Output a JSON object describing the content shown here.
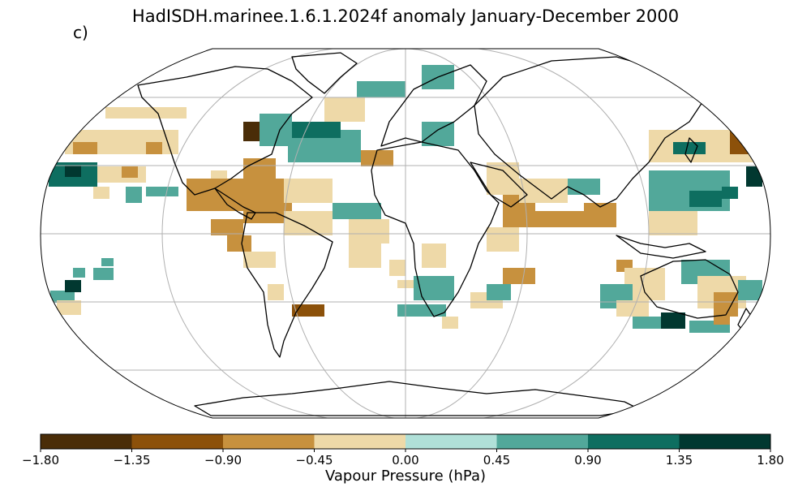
{
  "title": "HadISDH.marinee.1.6.1.2024f anomaly January-December 2000",
  "panel_label": "c)",
  "colorbar": {
    "label": "Vapour Pressure (hPa)",
    "ticks": [
      "−1.80",
      "−1.35",
      "−0.90",
      "−0.45",
      "0.00",
      "0.45",
      "0.90",
      "1.35",
      "1.80"
    ],
    "colors": [
      "#4a2d08",
      "#8c510a",
      "#c7913e",
      "#eed9a8",
      "#b0e0d8",
      "#52a89a",
      "#0e6e60",
      "#013830"
    ]
  },
  "map": {
    "projection": "Robinson",
    "gridlines": true,
    "coastlines": true,
    "data_colors_order": "colors index 0..7 from colorbar.colors"
  }
}
